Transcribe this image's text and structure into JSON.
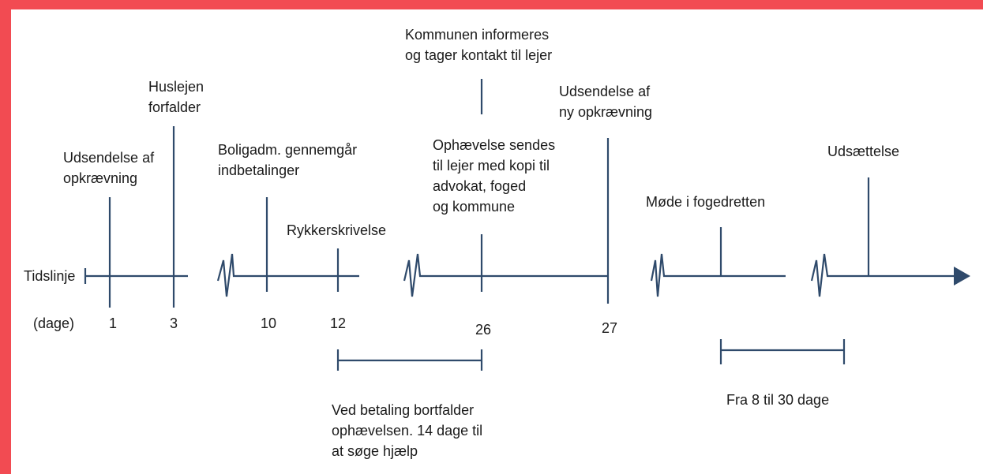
{
  "axis_label": "Tidslinje",
  "unit_label": "(dage)",
  "events": [
    {
      "label": [
        "Udsendelse af",
        "opkrævning"
      ],
      "day": 1
    },
    {
      "label": [
        "Huslejen",
        "forfalder"
      ],
      "day": 3
    },
    {
      "label": [
        "Boligadm. gennemgår",
        "indbetalinger"
      ],
      "day": 10
    },
    {
      "label": [
        "Rykkerskrivelse"
      ],
      "day": 12
    },
    {
      "note": [
        "Kommunen informeres",
        "og tager kontakt til lejer"
      ],
      "label": [
        "Ophævelse sendes",
        "til lejer med kopi til",
        "advokat, foged",
        "og kommune"
      ],
      "day": 26
    },
    {
      "label": [
        "Udsendelse af",
        "ny opkrævning"
      ],
      "day": 27
    },
    {
      "label": [
        "Møde i fogedretten"
      ]
    },
    {
      "label": [
        "Udsættelse"
      ]
    }
  ],
  "ranges": [
    {
      "label": [
        "Ved betaling bortfalder",
        "ophævelsen. 14 dage til",
        "at søge hjælp"
      ]
    },
    {
      "label": [
        "Fra 8 til 30 dage"
      ]
    }
  ]
}
